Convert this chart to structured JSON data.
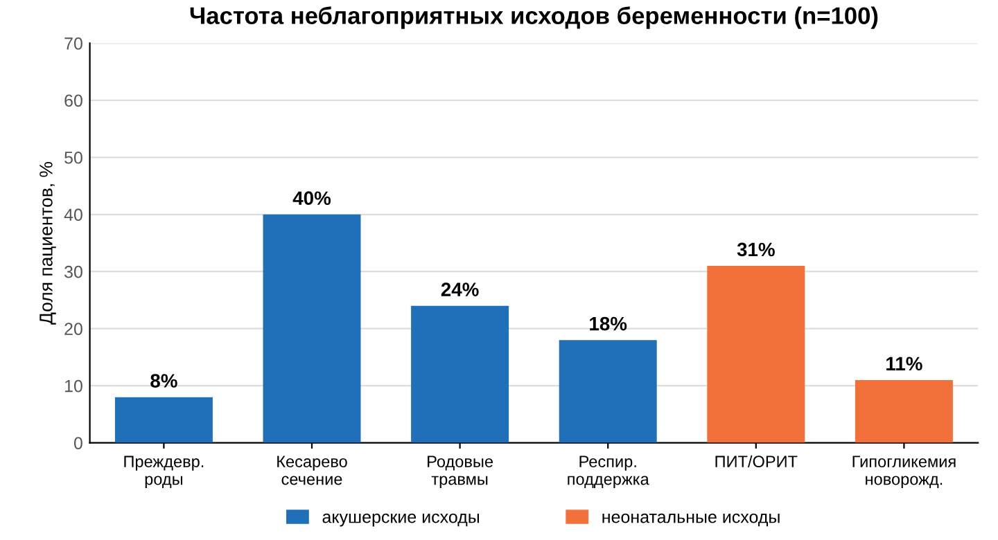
{
  "chart_data": {
    "type": "bar",
    "title": "Частота неблагоприятных исходов беременности (n=100)",
    "ylabel": "Доля пациентов, %",
    "categories": [
      "Преждевр.\nроды",
      "Кесарево\nсечение",
      "Родовые\nтравмы",
      "Респир.\nподдержка",
      "ПИТ/ОРИТ",
      "Гипогликемия\nноворожд."
    ],
    "stacked": true,
    "series": [
      {
        "name": "акушерские исходы",
        "color": "#1f70b8",
        "values": [
          8,
          40,
          24,
          18,
          null,
          null
        ],
        "value_labels": [
          "8%",
          "40%",
          "24%",
          "18%",
          null,
          null
        ]
      },
      {
        "name": "неонатальные исходы",
        "color": "#f2703a",
        "values": [
          null,
          null,
          null,
          null,
          31,
          11
        ],
        "value_labels": [
          null,
          null,
          null,
          null,
          "31%",
          "11%"
        ]
      }
    ],
    "ylim": [
      0,
      70
    ],
    "yticks": [
      0,
      10,
      20,
      30,
      40,
      50,
      60,
      70
    ],
    "grid": "y",
    "legend": "bottom"
  }
}
